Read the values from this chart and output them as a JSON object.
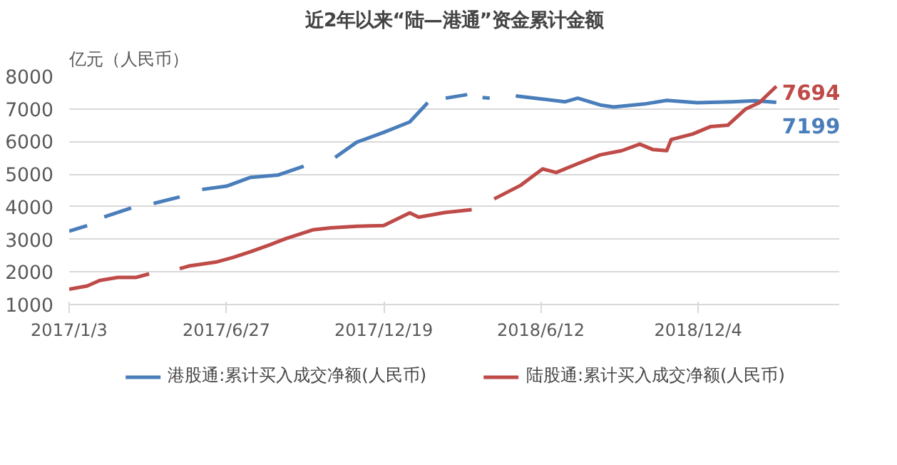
{
  "chart_data": {
    "type": "line",
    "title": "近2年以来“陆—港通”资金累计金额",
    "ylabel": "亿元（人民币）",
    "ylim": [
      1000,
      8000
    ],
    "yticks": [
      1000,
      2000,
      3000,
      4000,
      5000,
      6000,
      7000,
      8000
    ],
    "xlim": [
      "2017-01-03",
      "2019-05-10"
    ],
    "xticks": [
      {
        "value": "2017-01-03",
        "label": "2017/1/3"
      },
      {
        "value": "2017-06-27",
        "label": "2017/6/27"
      },
      {
        "value": "2017-12-19",
        "label": "2017/12/19"
      },
      {
        "value": "2018-06-12",
        "label": "2018/6/12"
      },
      {
        "value": "2018-12-04",
        "label": "2018/12/4"
      }
    ],
    "grid": "y",
    "legend": "bottom",
    "line_style": "solid",
    "series": [
      {
        "name": "港股通:累计买入成交净额(人民币)",
        "color": "#4a7ebb",
        "x": [
          "2017-01-03",
          "2017-01-23",
          "2017-01-28",
          "2017-02-11",
          "2017-03-13",
          "2017-03-20",
          "2017-04-07",
          "2017-05-06",
          "2017-05-13",
          "2017-05-31",
          "2017-06-27",
          "2017-07-24",
          "2017-08-23",
          "2017-09-21",
          "2017-09-29",
          "2017-10-26",
          "2017-11-19",
          "2017-12-19",
          "2018-01-17",
          "2018-02-06",
          "2018-02-13",
          "2018-02-26",
          "2018-03-22",
          "2018-03-29",
          "2018-04-08",
          "2018-04-16",
          "2018-04-26",
          "2018-05-15",
          "2018-06-14",
          "2018-07-09",
          "2018-07-23",
          "2018-08-17",
          "2018-09-01",
          "2018-10-05",
          "2018-10-30",
          "2018-12-03",
          "2019-01-11",
          "2019-02-05",
          "2019-03-01"
        ],
        "values": [
          3250,
          3420,
          null,
          3690,
          3960,
          null,
          4100,
          4300,
          null,
          4530,
          4630,
          4900,
          4970,
          5240,
          null,
          5510,
          5980,
          6280,
          6600,
          7190,
          null,
          7330,
          7440,
          null,
          7350,
          7330,
          null,
          7400,
          7300,
          7220,
          7330,
          7120,
          7060,
          7150,
          7260,
          7190,
          7220,
          7250,
          7199
        ]
      },
      {
        "name": "陆股通:累计买入成交净额(人民币)",
        "color": "#be4b48",
        "x": [
          "2017-01-03",
          "2017-01-23",
          "2017-02-06",
          "2017-02-26",
          "2017-03-18",
          "2017-04-02",
          "2017-04-10",
          "2017-05-06",
          "2017-05-16",
          "2017-06-15",
          "2017-07-04",
          "2017-07-24",
          "2017-08-13",
          "2017-09-01",
          "2017-10-01",
          "2017-10-21",
          "2017-11-19",
          "2017-12-19",
          "2018-01-17",
          "2018-01-27",
          "2018-02-25",
          "2018-03-27",
          "2018-04-03",
          "2018-04-21",
          "2018-05-20",
          "2018-06-14",
          "2018-06-29",
          "2018-07-23",
          "2018-08-17",
          "2018-09-10",
          "2018-09-30",
          "2018-10-15",
          "2018-10-30",
          "2018-11-04",
          "2018-11-28",
          "2018-12-18",
          "2019-01-06",
          "2019-01-26",
          "2019-02-10",
          "2019-03-01"
        ],
        "values": [
          1470,
          1570,
          1740,
          1830,
          1830,
          1940,
          null,
          2100,
          2180,
          2300,
          2440,
          2620,
          2820,
          3020,
          3290,
          3350,
          3400,
          3420,
          3810,
          3680,
          3820,
          3910,
          null,
          4240,
          4650,
          5160,
          5050,
          5320,
          5590,
          5720,
          5920,
          5750,
          5720,
          6060,
          6230,
          6460,
          6500,
          7000,
          7190,
          7694
        ]
      }
    ],
    "annotations": [
      {
        "text": "7199",
        "x": "2019-03-01",
        "y": 7199
      },
      {
        "text": "7694",
        "x": "2019-03-01",
        "y": 7694
      }
    ]
  }
}
